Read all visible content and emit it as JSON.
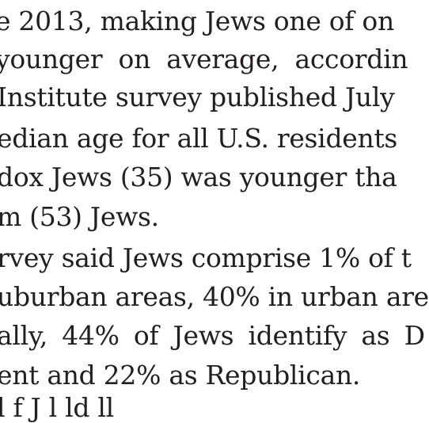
{
  "document": {
    "lines": [
      "e 2013, making Jews one of on",
      "younger on average, accordin",
      "Institute survey published July",
      "edian age for all U.S. residents",
      "dox Jews (35) was younger tha",
      "m (53) Jews.",
      "rvey said Jews comprise 1% of t",
      "uburban areas, 40% in urban are",
      "ally, 44% of Jews identify as D",
      "ent and 22% as Republican.",
      "l                     f J    l   ld    ll"
    ]
  }
}
